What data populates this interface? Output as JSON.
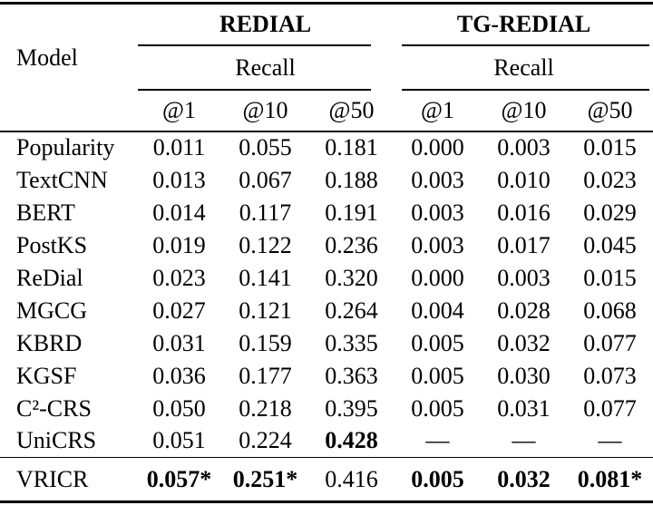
{
  "page": {
    "background_color": "#ffffff",
    "text_color": "#000000",
    "rule_color": "#000000"
  },
  "table": {
    "corner_header": "Model",
    "groups": [
      {
        "title": "REDIAL",
        "metric": "Recall",
        "columns": [
          "@1",
          "@10",
          "@50"
        ]
      },
      {
        "title": "TG-REDIAL",
        "metric": "Recall",
        "columns": [
          "@1",
          "@10",
          "@50"
        ]
      }
    ],
    "rows": [
      {
        "model": "Popularity",
        "values": [
          "0.011",
          "0.055",
          "0.181",
          "0.000",
          "0.003",
          "0.015"
        ]
      },
      {
        "model": "TextCNN",
        "values": [
          "0.013",
          "0.067",
          "0.188",
          "0.003",
          "0.010",
          "0.023"
        ]
      },
      {
        "model": "BERT",
        "values": [
          "0.014",
          "0.117",
          "0.191",
          "0.003",
          "0.016",
          "0.029"
        ]
      },
      {
        "model": "PostKS",
        "values": [
          "0.019",
          "0.122",
          "0.236",
          "0.003",
          "0.017",
          "0.045"
        ]
      },
      {
        "model": "ReDial",
        "values": [
          "0.023",
          "0.141",
          "0.320",
          "0.000",
          "0.003",
          "0.015"
        ]
      },
      {
        "model": "MGCG",
        "values": [
          "0.027",
          "0.121",
          "0.264",
          "0.004",
          "0.028",
          "0.068"
        ]
      },
      {
        "model": "KBRD",
        "values": [
          "0.031",
          "0.159",
          "0.335",
          "0.005",
          "0.032",
          "0.077"
        ]
      },
      {
        "model": "KGSF",
        "values": [
          "0.036",
          "0.177",
          "0.363",
          "0.005",
          "0.030",
          "0.073"
        ]
      },
      {
        "model": "C²-CRS",
        "values": [
          "0.050",
          "0.218",
          "0.395",
          "0.005",
          "0.031",
          "0.077"
        ]
      },
      {
        "model": "UniCRS",
        "values": [
          "0.051",
          "0.224",
          "0.428",
          "—",
          "—",
          "—"
        ]
      }
    ],
    "final_row": {
      "model": "VRICR",
      "values": [
        "0.057*",
        "0.251*",
        "0.416",
        "0.005",
        "0.032",
        "0.081*"
      ]
    }
  }
}
